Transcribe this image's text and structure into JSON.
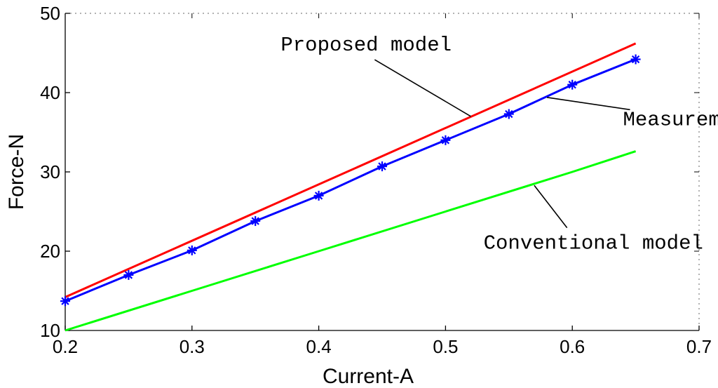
{
  "chart_data": {
    "type": "line",
    "title": "",
    "xlabel": "Current-A",
    "ylabel": "Force-N",
    "xlim": [
      0.2,
      0.7
    ],
    "ylim": [
      10,
      50
    ],
    "xticks": [
      "0.2",
      "0.3",
      "0.4",
      "0.5",
      "0.6",
      "0.7"
    ],
    "yticks": [
      "10",
      "20",
      "30",
      "40",
      "50"
    ],
    "grid": false,
    "legend": "none",
    "series": [
      {
        "key": "proposed",
        "color": "#ff0000",
        "marker": "none",
        "x": [
          0.2,
          0.65
        ],
        "y": [
          14.2,
          46.2
        ]
      },
      {
        "key": "measurement",
        "color": "#0000ff",
        "marker": "star",
        "x": [
          0.2,
          0.25,
          0.3,
          0.35,
          0.4,
          0.45,
          0.5,
          0.55,
          0.6,
          0.65
        ],
        "y": [
          13.7,
          17.0,
          20.1,
          23.8,
          27.0,
          30.7,
          34.0,
          37.3,
          41.0,
          44.2
        ]
      },
      {
        "key": "conventional",
        "color": "#00ff00",
        "marker": "none",
        "x": [
          0.2,
          0.3,
          0.4,
          0.5,
          0.6,
          0.65
        ],
        "y": [
          10.0,
          15.0,
          20.0,
          25.0,
          30.0,
          32.6
        ]
      }
    ],
    "annotations": [
      {
        "text": "Proposed model",
        "series": "proposed",
        "x": 0.37,
        "y": 45.3,
        "leader_to": [
          0.52,
          37.0
        ]
      },
      {
        "text": "Measurement",
        "series": "measurement",
        "x": 0.64,
        "y": 35.9,
        "leader_to": [
          0.58,
          39.4
        ]
      },
      {
        "text": "Conventional model",
        "series": "conventional",
        "x": 0.53,
        "y": 20.3,
        "leader_to": [
          0.57,
          28.3
        ]
      }
    ]
  }
}
